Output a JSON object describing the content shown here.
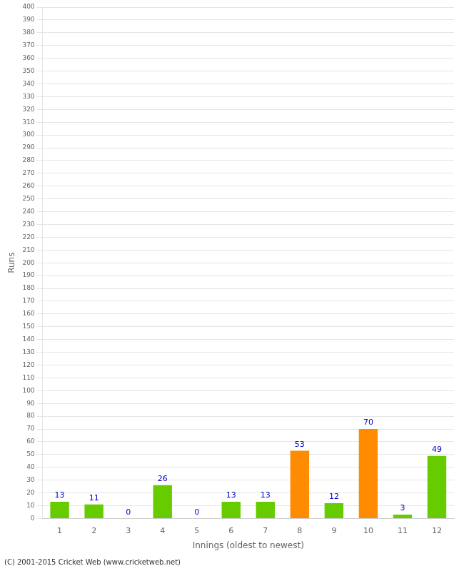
{
  "chart_data": {
    "type": "bar",
    "xlabel": "Innings (oldest to newest)",
    "ylabel": "Runs",
    "categories": [
      "1",
      "2",
      "3",
      "4",
      "5",
      "6",
      "7",
      "8",
      "9",
      "10",
      "11",
      "12"
    ],
    "values": [
      13,
      11,
      0,
      26,
      0,
      13,
      13,
      53,
      12,
      70,
      3,
      49
    ],
    "colors": [
      "#66cc00",
      "#66cc00",
      "#66cc00",
      "#66cc00",
      "#66cc00",
      "#66cc00",
      "#66cc00",
      "#ff8c00",
      "#66cc00",
      "#ff8c00",
      "#66cc00",
      "#66cc00"
    ],
    "ylim": [
      0,
      400
    ],
    "yticks": [
      0,
      10,
      20,
      30,
      40,
      50,
      60,
      70,
      80,
      90,
      100,
      110,
      120,
      130,
      140,
      150,
      160,
      170,
      180,
      190,
      200,
      210,
      220,
      230,
      240,
      250,
      260,
      270,
      280,
      290,
      300,
      310,
      320,
      330,
      340,
      350,
      360,
      370,
      380,
      390,
      400
    ],
    "grid": true,
    "data_labels": true,
    "annotations": [
      "(C) 2001-2015 Cricket Web (www.cricketweb.net)"
    ]
  }
}
